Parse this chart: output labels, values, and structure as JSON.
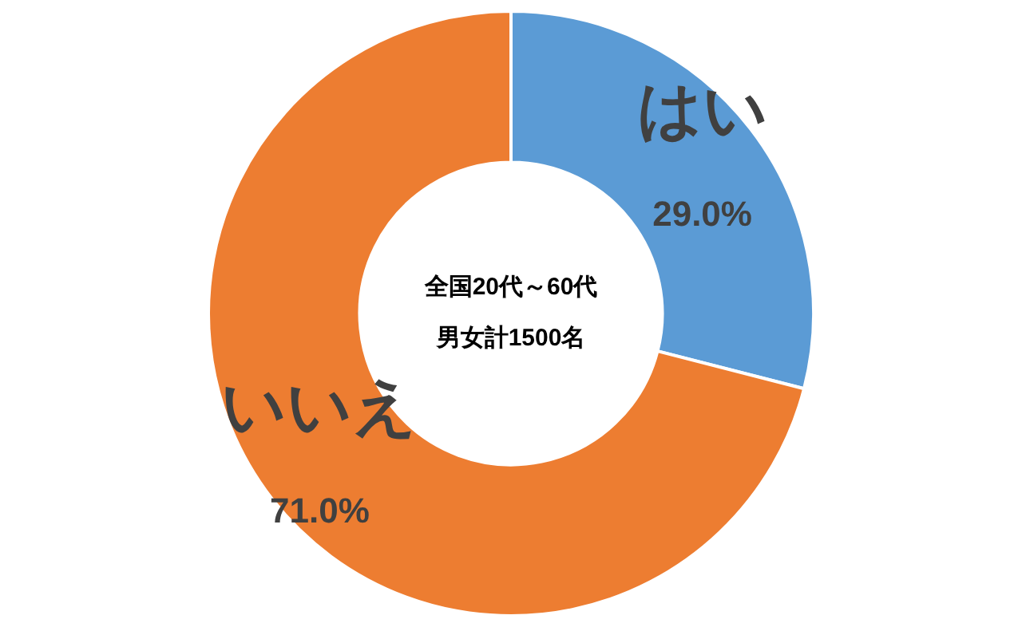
{
  "chart_data": {
    "type": "donut",
    "categories": [
      "はい",
      "いいえ"
    ],
    "values": [
      29.0,
      71.0
    ],
    "colors": [
      "#5b9bd5",
      "#ed7d31"
    ],
    "value_labels": [
      "29.0%",
      "71.0%"
    ],
    "annotations": [
      "全国20代～60代",
      "男女計1500名"
    ],
    "legend": false
  }
}
